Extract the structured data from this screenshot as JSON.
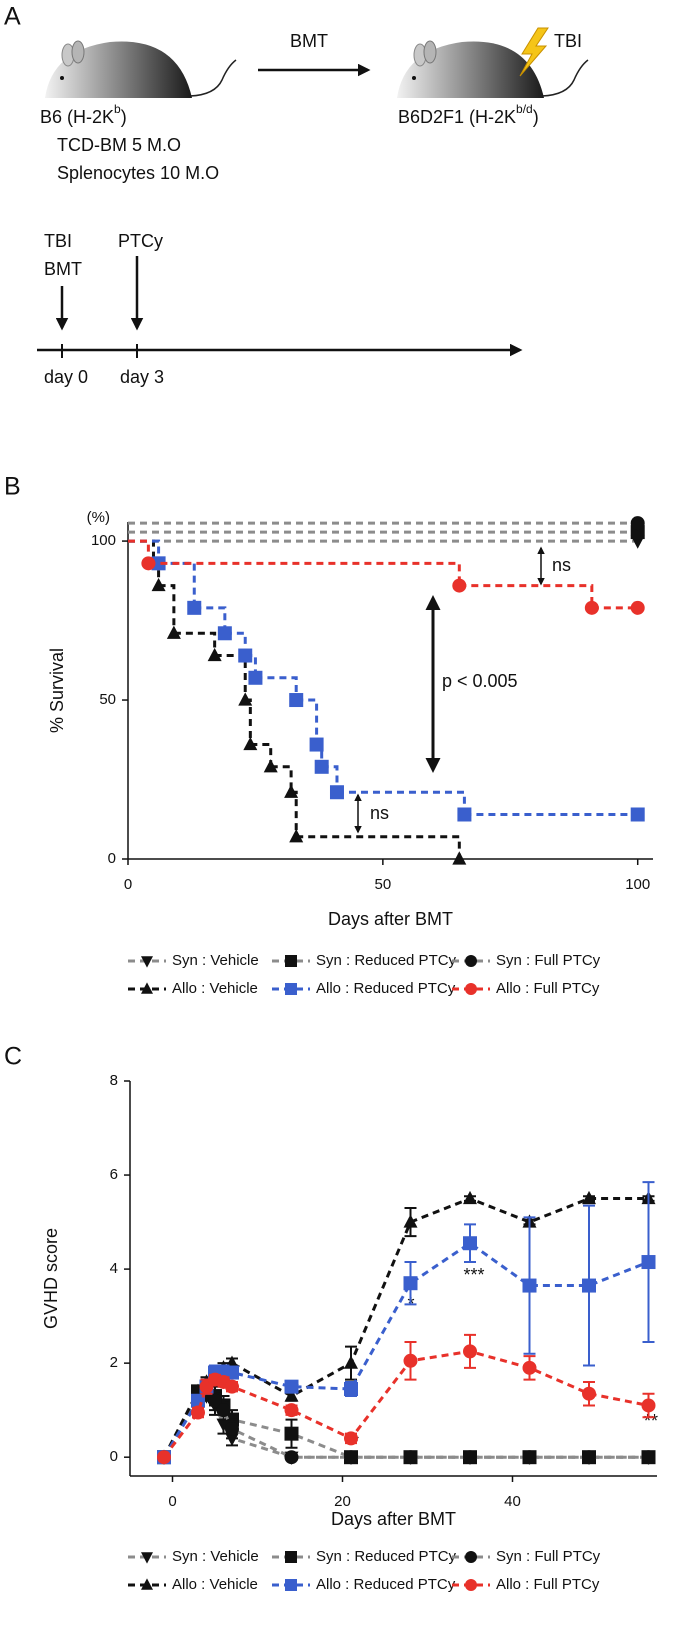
{
  "diagram": {
    "label": "A",
    "bmt": "BMT",
    "tbi": "TBI",
    "donor": [
      "B6 (H-2K",
      "b",
      ")"
    ],
    "recipient": [
      "B6D2F1 (H-2K",
      "b/d",
      ")"
    ],
    "donor_cells": [
      "TCD-BM 5 M.O",
      "Splenocytes 10 M.O"
    ],
    "timeline": [
      {
        "labels": [
          "TBI",
          "BMT"
        ],
        "day": "day 0"
      },
      {
        "labels": [
          "PTCy"
        ],
        "day": "day 3"
      }
    ]
  },
  "chart_data": [
    {
      "type": "step",
      "panel": "B",
      "y_unit": "(%)",
      "xlabel": "Days after BMT",
      "ylabel": "% Survival",
      "xlim": [
        0,
        103
      ],
      "ylim": [
        0,
        106
      ],
      "xticks": [
        0,
        50,
        100
      ],
      "yticks": [
        0,
        50,
        100
      ],
      "annotations": [
        "ns",
        "p < 0.005",
        "ns"
      ],
      "series": [
        {
          "name": "Syn : Vehicle",
          "color": "#8c8c8c",
          "marker_color": "#111111",
          "marker": "triangle-down",
          "x": [
            0,
            100
          ],
          "values": [
            100,
            100
          ]
        },
        {
          "name": "Syn : Reduced PTCy",
          "color": "#8c8c8c",
          "marker_color": "#111111",
          "marker": "square",
          "x": [
            0,
            100
          ],
          "values": [
            100,
            100
          ]
        },
        {
          "name": "Syn : Full PTCy",
          "color": "#8c8c8c",
          "marker_color": "#111111",
          "marker": "circle",
          "x": [
            0,
            100
          ],
          "values": [
            100,
            100
          ]
        },
        {
          "name": "Allo : Vehicle",
          "color": "#111111",
          "marker_color": "#111111",
          "marker": "triangle-up",
          "x": [
            0,
            5,
            6,
            9,
            17,
            23,
            24,
            28,
            32,
            33,
            65
          ],
          "values": [
            100,
            93,
            86,
            71,
            64,
            50,
            36,
            29,
            21,
            7,
            0
          ]
        },
        {
          "name": "Allo : Reduced PTCy",
          "color": "#3a5fcd",
          "marker_color": "#3a5fcd",
          "marker": "square",
          "x": [
            0,
            6,
            13,
            19,
            23,
            25,
            33,
            37,
            38,
            41,
            66,
            100
          ],
          "values": [
            100,
            93,
            79,
            71,
            64,
            57,
            50,
            36,
            29,
            21,
            14,
            14
          ]
        },
        {
          "name": "Allo : Full PTCy",
          "color": "#e8312a",
          "marker_color": "#e8312a",
          "marker": "circle",
          "x": [
            0,
            4,
            65,
            91,
            100
          ],
          "values": [
            100,
            93,
            86,
            79,
            79
          ]
        }
      ]
    },
    {
      "type": "line",
      "panel": "C",
      "xlabel": "Days after BMT",
      "ylabel": "GVHD score",
      "xlim": [
        -5,
        57
      ],
      "ylim": [
        -0.4,
        8
      ],
      "xticks": [
        0,
        20,
        40
      ],
      "yticks": [
        0,
        2,
        4,
        6,
        8
      ],
      "x": [
        -1,
        3,
        4,
        5,
        6,
        7,
        14,
        21,
        28,
        35,
        42,
        49,
        56
      ],
      "annotations": [
        "**",
        "**",
        "*",
        "***",
        "**"
      ],
      "series": [
        {
          "name": "Syn : Vehicle",
          "color": "#8c8c8c",
          "marker_color": "#111111",
          "marker": "triangle-down",
          "values": [
            0,
            1.2,
            1.3,
            1.1,
            0.7,
            0.4,
            0,
            0,
            0,
            0,
            0,
            0,
            0
          ],
          "errors": [
            0,
            0.1,
            0.1,
            0.2,
            0.2,
            0.15,
            0,
            0,
            0,
            0,
            0,
            0,
            0
          ]
        },
        {
          "name": "Syn : Reduced PTCy",
          "color": "#8c8c8c",
          "marker_color": "#111111",
          "marker": "square",
          "values": [
            0,
            1.4,
            1.5,
            1.3,
            1.1,
            0.8,
            0.5,
            0,
            0,
            0,
            0,
            0,
            0
          ],
          "errors": [
            0,
            0.1,
            0.1,
            0.2,
            0.2,
            0.2,
            0.3,
            0,
            0,
            0,
            0,
            0,
            0
          ]
        },
        {
          "name": "Syn : Full PTCy",
          "color": "#8c8c8c",
          "marker_color": "#111111",
          "marker": "circle",
          "values": [
            0,
            1.3,
            1.4,
            1.2,
            1.0,
            0.6,
            0,
            0,
            0,
            0,
            0,
            0,
            0
          ],
          "errors": [
            0,
            0.1,
            0.1,
            0.2,
            0.2,
            0.2,
            0,
            0,
            0,
            0,
            0,
            0,
            0
          ]
        },
        {
          "name": "Allo : Vehicle",
          "color": "#111111",
          "marker_color": "#111111",
          "marker": "triangle-up",
          "values": [
            0,
            1.4,
            1.6,
            1.8,
            1.9,
            2.0,
            1.3,
            2.0,
            5.0,
            5.5,
            5.0,
            5.5,
            5.5
          ],
          "errors": [
            0,
            0.1,
            0.1,
            0.1,
            0.1,
            0.1,
            0.1,
            0.35,
            0.3,
            0.05,
            0.05,
            0.05,
            0.05
          ]
        },
        {
          "name": "Allo : Reduced PTCy",
          "color": "#3a5fcd",
          "marker_color": "#3a5fcd",
          "marker": "square",
          "values": [
            0,
            1.2,
            1.5,
            1.8,
            1.8,
            1.8,
            1.5,
            1.45,
            3.7,
            4.55,
            3.65,
            3.65,
            4.15
          ],
          "errors": [
            0,
            0.1,
            0.15,
            0.15,
            0.15,
            0.1,
            0.1,
            0.15,
            0.45,
            0.4,
            1.45,
            1.7,
            1.7
          ]
        },
        {
          "name": "Allo : Full PTCy",
          "color": "#e8312a",
          "marker_color": "#e8312a",
          "marker": "circle",
          "values": [
            0,
            0.95,
            1.5,
            1.65,
            1.6,
            1.5,
            1.0,
            0.4,
            2.05,
            2.25,
            1.9,
            1.35,
            1.1
          ],
          "errors": [
            0,
            0.1,
            0.15,
            0.1,
            0.1,
            0.1,
            0.1,
            0.1,
            0.4,
            0.35,
            0.25,
            0.25,
            0.25
          ]
        }
      ]
    }
  ]
}
